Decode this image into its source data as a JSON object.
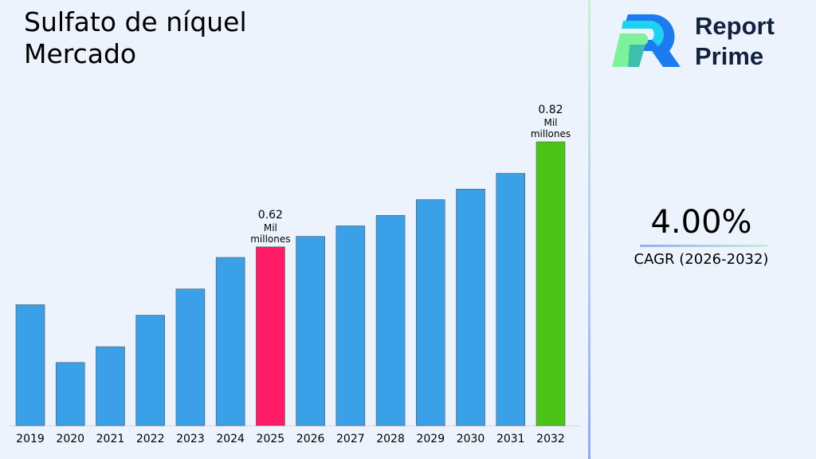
{
  "title": [
    "Sulfato de níquel",
    "Mercado"
  ],
  "brand": {
    "line1": "Report",
    "line2": "Prime"
  },
  "cagr": {
    "value": "4.00%",
    "label": "CAGR (2026-2032)"
  },
  "colors": {
    "default": "#3aa0e8",
    "highlight_2025": "#ff1a66",
    "highlight_2032": "#4cc417"
  },
  "chart_data": {
    "type": "bar",
    "categories": [
      "2019",
      "2020",
      "2021",
      "2022",
      "2023",
      "2024",
      "2025",
      "2026",
      "2027",
      "2028",
      "2029",
      "2030",
      "2031",
      "2032"
    ],
    "values": [
      0.51,
      0.4,
      0.43,
      0.49,
      0.54,
      0.6,
      0.62,
      0.64,
      0.66,
      0.68,
      0.71,
      0.73,
      0.76,
      0.82
    ],
    "unit": "Mil millones",
    "data_labels": {
      "2025": [
        "0.62",
        "Mil",
        "millones"
      ],
      "2032": [
        "0.82",
        "Mil",
        "millones"
      ]
    },
    "ylim": [
      0.28,
      0.82
    ],
    "grid": false
  }
}
